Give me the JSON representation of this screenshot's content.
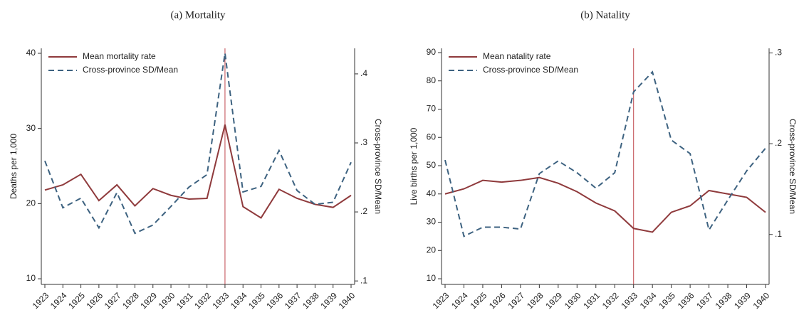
{
  "chart_data": [
    {
      "type": "line",
      "title": "(a) Mortality",
      "ylabel": "Deaths per 1,000",
      "y2label": "Cross-province SD/Mean",
      "categories": [
        "1923",
        "1924",
        "1925",
        "1926",
        "1927",
        "1928",
        "1929",
        "1930",
        "1931",
        "1932",
        "1933",
        "1934",
        "1935",
        "1936",
        "1937",
        "1938",
        "1939",
        "1940"
      ],
      "series": [
        {
          "name": "Mean mortality rate",
          "color": "#8f3a3c",
          "dash": false,
          "values": [
            21.8,
            22.5,
            23.9,
            20.4,
            22.5,
            19.7,
            22.0,
            21.1,
            20.6,
            20.7,
            30.5,
            19.6,
            18.1,
            21.9,
            20.7,
            19.9,
            19.5,
            21.1
          ]
        },
        {
          "name": "Cross-province SD/Mean",
          "color": "#3d6280",
          "dash": true,
          "axis": "y2",
          "values": [
            0.274,
            0.206,
            0.22,
            0.177,
            0.228,
            0.169,
            0.181,
            0.208,
            0.236,
            0.254,
            0.43,
            0.229,
            0.237,
            0.289,
            0.231,
            0.211,
            0.214,
            0.272
          ]
        }
      ],
      "ylim": [
        9.25,
        40.66
      ],
      "yticks": [
        10,
        20,
        30,
        40
      ],
      "y2lim": [
        0.095,
        0.437
      ],
      "y2ticks": [
        {
          "value": 0.1,
          "label": ".1"
        },
        {
          "value": 0.2,
          "label": ".2"
        },
        {
          "value": 0.3,
          "label": ".3"
        },
        {
          "value": 0.4,
          "label": ".4"
        }
      ],
      "vline": "1933",
      "vline_color": "#c0484e"
    },
    {
      "type": "line",
      "title": "(b) Natality",
      "ylabel": "Live births per 1,000",
      "y2label": "Cross-province SD/Mean",
      "categories": [
        "1923",
        "1924",
        "1925",
        "1926",
        "1927",
        "1928",
        "1929",
        "1930",
        "1931",
        "1932",
        "1933",
        "1934",
        "1935",
        "1936",
        "1937",
        "1938",
        "1939",
        "1940"
      ],
      "series": [
        {
          "name": "Mean natality rate",
          "color": "#8f3a3c",
          "dash": false,
          "values": [
            40,
            41.8,
            44.8,
            44.2,
            44.8,
            45.8,
            43.8,
            40.8,
            36.8,
            34,
            27.8,
            26.5,
            33.5,
            35.8,
            41.2,
            40,
            38.8,
            33.5
          ]
        },
        {
          "name": "Cross-province SD/Mean",
          "color": "#3d6280",
          "dash": true,
          "axis": "y2",
          "values": [
            0.182,
            0.098,
            0.108,
            0.108,
            0.106,
            0.167,
            0.181,
            0.168,
            0.151,
            0.168,
            0.257,
            0.279,
            0.204,
            0.189,
            0.105,
            0.138,
            0.17,
            0.195
          ]
        }
      ],
      "ylim": [
        8,
        91.5
      ],
      "yticks": [
        10,
        20,
        30,
        40,
        50,
        60,
        70,
        80,
        90
      ],
      "y2lim": [
        0.045,
        0.305
      ],
      "y2ticks": [
        {
          "value": 0.1,
          "label": ".1"
        },
        {
          "value": 0.2,
          "label": ".2"
        },
        {
          "value": 0.3,
          "label": ".3"
        }
      ],
      "vline": "1933",
      "vline_color": "#c0484e"
    }
  ]
}
